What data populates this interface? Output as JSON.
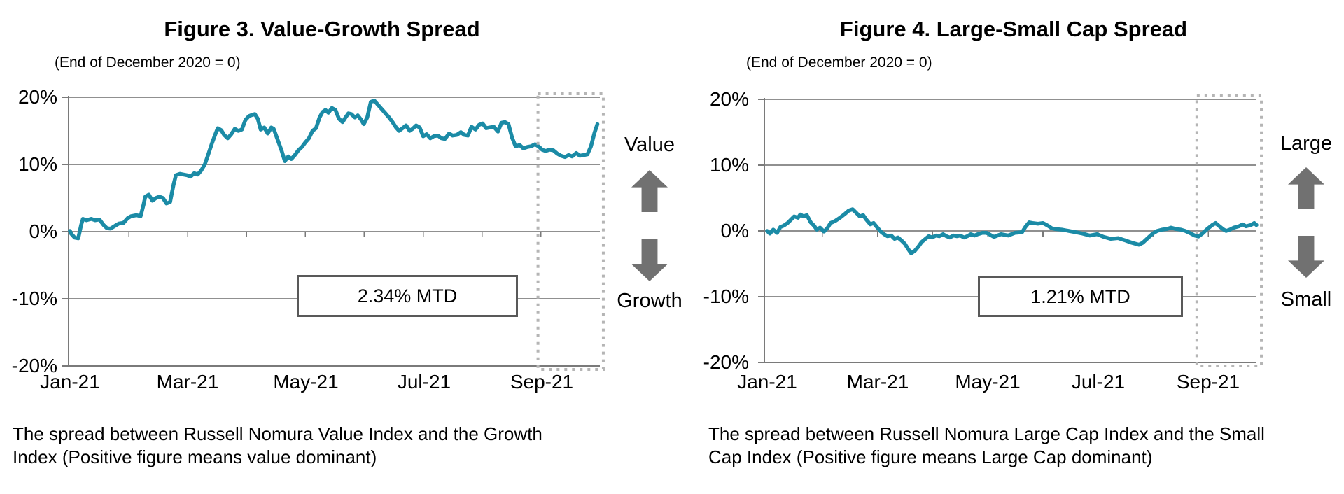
{
  "colors": {
    "series_teal": "#1b8ba6",
    "gridline_gray": "#909090",
    "axis_gray": "#7a7a7a",
    "highlight_dotted_gray": "#b5b5b5",
    "arrow_gray": "#717171",
    "mtd_border_gray": "#595959",
    "text_black": "#000000"
  },
  "charts": [
    {
      "title": "Figure 3. Value-Growth Spread",
      "subtitle": "(End of December 2020 = 0)",
      "mtd_box_label": "2.34% MTD",
      "upper_label": "Value",
      "lower_label": "Growth",
      "caption_lines": [
        "The spread between Russell Nomura Value Index and the Growth",
        "Index (Positive figure means value dominant)"
      ],
      "y_tick_labels": [
        "20%",
        "10%",
        "0%",
        "-10%",
        "-20%"
      ],
      "x_tick_labels": [
        "Jan-21",
        "Mar-21",
        "May-21",
        "Jul-21",
        "Sep-21"
      ],
      "chart_data": {
        "type": "line",
        "series_name": "Russell Nomura Value minus Growth spread (%)",
        "title": "Figure 3. Value-Growth Spread",
        "subtitle": "(End of December 2020 = 0)",
        "x_unit": "months since 2021-01-01",
        "xlim": [
          -0.02,
          9.0
        ],
        "ylim": [
          -20,
          20
        ],
        "yticks": [
          20,
          10,
          0,
          -10,
          -20
        ],
        "ytick_labels": [
          "20%",
          "10%",
          "0%",
          "-10%",
          "-20%"
        ],
        "xticks_months": [
          0,
          2,
          4,
          6,
          8
        ],
        "xtick_labels": [
          "Jan-21",
          "Mar-21",
          "May-21",
          "Jul-21",
          "Sep-21"
        ],
        "minor_xticks_months": [
          1,
          2,
          3,
          4,
          5,
          6,
          7,
          8
        ],
        "grid": true,
        "annotation": "2.34% MTD",
        "highlight_box_months": [
          7.95,
          9.06
        ],
        "line_color": "#1b8ba6",
        "x": [
          0,
          0.02,
          0.08,
          0.14,
          0.19,
          0.22,
          0.28,
          0.36,
          0.43,
          0.5,
          0.57,
          0.63,
          0.69,
          0.77,
          0.83,
          0.91,
          0.98,
          1.04,
          1.13,
          1.2,
          1.25,
          1.28,
          1.34,
          1.4,
          1.46,
          1.52,
          1.58,
          1.64,
          1.7,
          1.76,
          1.8,
          1.87,
          1.93,
          1.99,
          2.05,
          2.11,
          2.17,
          2.23,
          2.29,
          2.35,
          2.41,
          2.47,
          2.51,
          2.57,
          2.62,
          2.68,
          2.74,
          2.8,
          2.86,
          2.92,
          2.98,
          3.04,
          3.1,
          3.14,
          3.19,
          3.24,
          3.3,
          3.36,
          3.42,
          3.46,
          3.54,
          3.59,
          3.65,
          3.71,
          3.76,
          3.82,
          3.88,
          3.94,
          4.0,
          4.06,
          4.12,
          4.18,
          4.24,
          4.29,
          4.34,
          4.39,
          4.45,
          4.51,
          4.57,
          4.63,
          4.69,
          4.73,
          4.78,
          4.84,
          4.89,
          4.95,
          4.99,
          5.05,
          5.11,
          5.17,
          5.23,
          5.29,
          5.36,
          5.42,
          5.48,
          5.54,
          5.59,
          5.65,
          5.71,
          5.77,
          5.82,
          5.88,
          5.94,
          6.0,
          6.06,
          6.12,
          6.18,
          6.25,
          6.31,
          6.37,
          6.44,
          6.5,
          6.57,
          6.64,
          6.7,
          6.76,
          6.82,
          6.89,
          6.95,
          7.01,
          7.07,
          7.13,
          7.2,
          7.27,
          7.33,
          7.39,
          7.45,
          7.51,
          7.57,
          7.64,
          7.7,
          7.77,
          7.83,
          7.9,
          7.96,
          8.02,
          8.08,
          8.15,
          8.21,
          8.28,
          8.34,
          8.41,
          8.47,
          8.53,
          8.6,
          8.66,
          8.73,
          8.79,
          8.85,
          8.91,
          8.96
        ],
        "y": [
          0.1,
          -0.3,
          -0.9,
          -1.0,
          1.0,
          1.9,
          1.7,
          1.9,
          1.7,
          1.8,
          1.0,
          0.5,
          0.45,
          0.9,
          1.2,
          1.3,
          2.0,
          2.3,
          2.45,
          2.3,
          4.0,
          5.2,
          5.5,
          4.6,
          5.0,
          5.2,
          5.0,
          4.2,
          4.4,
          7.0,
          8.4,
          8.6,
          8.5,
          8.4,
          8.2,
          8.7,
          8.5,
          9.1,
          10.0,
          11.5,
          13.1,
          14.5,
          15.4,
          15.1,
          14.4,
          13.9,
          14.5,
          15.3,
          15.0,
          15.2,
          16.6,
          17.2,
          17.4,
          17.5,
          16.8,
          15.2,
          15.5,
          14.6,
          15.5,
          15.3,
          13.4,
          12.2,
          10.5,
          11.2,
          10.8,
          11.4,
          12.1,
          12.6,
          13.3,
          13.9,
          15.0,
          15.4,
          17.0,
          17.8,
          18.1,
          17.7,
          18.4,
          18.1,
          16.8,
          16.3,
          17.1,
          17.6,
          17.5,
          17.0,
          17.3,
          16.6,
          16.0,
          17.0,
          19.3,
          19.5,
          18.9,
          18.3,
          17.6,
          17.0,
          16.3,
          15.5,
          15.0,
          15.4,
          15.8,
          15.0,
          15.3,
          15.8,
          15.5,
          14.2,
          14.5,
          13.9,
          14.2,
          14.3,
          13.9,
          13.8,
          14.6,
          14.3,
          14.4,
          14.8,
          14.4,
          14.3,
          15.6,
          15.2,
          15.9,
          16.1,
          15.4,
          15.5,
          15.6,
          14.9,
          16.2,
          16.3,
          16.0,
          14.0,
          12.7,
          12.9,
          12.4,
          12.6,
          12.7,
          13.0,
          12.7,
          12.2,
          12.0,
          12.2,
          12.1,
          11.6,
          11.3,
          11.1,
          11.4,
          11.2,
          11.7,
          11.3,
          11.4,
          11.5,
          12.7,
          14.7,
          16.0
        ]
      }
    },
    {
      "title": "Figure 4. Large-Small Cap Spread",
      "subtitle": "(End of December 2020 = 0)",
      "mtd_box_label": "1.21% MTD",
      "upper_label": "Large",
      "lower_label": "Small",
      "caption_lines": [
        "The spread between Russell Nomura Large Cap Index and the Small",
        "Cap Index (Positive figure means Large Cap dominant)"
      ],
      "y_tick_labels": [
        "20%",
        "10%",
        "0%",
        "-10%",
        "-20%"
      ],
      "x_tick_labels": [
        "Jan-21",
        "Mar-21",
        "May-21",
        "Jul-21",
        "Sep-21"
      ],
      "chart_data": {
        "type": "line",
        "series_name": "Russell Nomura Large Cap minus Small Cap spread (%)",
        "title": "Figure 4. Large-Small Cap Spread",
        "subtitle": "(End of December 2020 = 0)",
        "x_unit": "months since 2021-01-01",
        "xlim": [
          -0.05,
          8.87
        ],
        "ylim": [
          -20,
          20
        ],
        "yticks": [
          20,
          10,
          0,
          -10,
          -20
        ],
        "ytick_labels": [
          "20%",
          "10%",
          "0%",
          "-10%",
          "-20%"
        ],
        "xticks_months": [
          0,
          2,
          4,
          6,
          8
        ],
        "xtick_labels": [
          "Jan-21",
          "Mar-21",
          "May-21",
          "Jul-21",
          "Sep-21"
        ],
        "minor_xticks_months": [
          1,
          2,
          3,
          4,
          5,
          6,
          7,
          8
        ],
        "grid": true,
        "annotation": "1.21% MTD",
        "highlight_box_months": [
          7.79,
          8.96
        ],
        "line_color": "#1b8ba6",
        "x": [
          0,
          0.05,
          0.11,
          0.18,
          0.24,
          0.3,
          0.37,
          0.43,
          0.49,
          0.56,
          0.6,
          0.66,
          0.72,
          0.79,
          0.85,
          0.9,
          0.96,
          1.03,
          1.09,
          1.15,
          1.23,
          1.32,
          1.41,
          1.48,
          1.55,
          1.61,
          1.68,
          1.74,
          1.8,
          1.87,
          1.93,
          1.99,
          2.06,
          2.12,
          2.18,
          2.25,
          2.31,
          2.37,
          2.44,
          2.5,
          2.56,
          2.61,
          2.68,
          2.74,
          2.8,
          2.87,
          2.93,
          2.99,
          3.06,
          3.12,
          3.19,
          3.25,
          3.31,
          3.38,
          3.44,
          3.5,
          3.57,
          3.63,
          3.69,
          3.76,
          3.82,
          3.9,
          3.98,
          4.11,
          4.24,
          4.37,
          4.49,
          4.62,
          4.68,
          4.75,
          4.81,
          4.91,
          5.0,
          5.09,
          5.16,
          5.22,
          5.34,
          5.47,
          5.6,
          5.72,
          5.85,
          5.98,
          6.1,
          6.23,
          6.36,
          6.48,
          6.61,
          6.74,
          6.81,
          6.9,
          6.99,
          7.07,
          7.16,
          7.25,
          7.32,
          7.41,
          7.5,
          7.58,
          7.66,
          7.75,
          7.82,
          7.89,
          7.98,
          8.07,
          8.13,
          8.2,
          8.26,
          8.32,
          8.39,
          8.46,
          8.55,
          8.62,
          8.68,
          8.77,
          8.83,
          8.87
        ],
        "y": [
          0.0,
          -0.4,
          0.2,
          -0.3,
          0.6,
          0.8,
          1.2,
          1.7,
          2.2,
          2.0,
          2.5,
          2.2,
          2.4,
          1.3,
          0.8,
          0.2,
          0.5,
          -0.1,
          0.4,
          1.2,
          1.5,
          2.0,
          2.6,
          3.1,
          3.3,
          2.8,
          2.2,
          2.4,
          1.7,
          1.0,
          1.2,
          0.6,
          -0.1,
          -0.5,
          -0.8,
          -0.7,
          -1.2,
          -1.0,
          -1.5,
          -2.0,
          -2.8,
          -3.4,
          -3.0,
          -2.4,
          -1.7,
          -1.2,
          -0.8,
          -1.0,
          -0.7,
          -0.8,
          -0.5,
          -0.8,
          -1.0,
          -0.7,
          -0.8,
          -0.7,
          -1.0,
          -0.8,
          -0.5,
          -0.7,
          -0.5,
          -0.3,
          -0.3,
          -0.9,
          -0.5,
          -0.7,
          -0.3,
          -0.2,
          0.6,
          1.3,
          1.2,
          1.1,
          1.2,
          0.8,
          0.4,
          0.3,
          0.2,
          0.0,
          -0.2,
          -0.4,
          -0.7,
          -0.5,
          -0.9,
          -1.2,
          -1.1,
          -1.4,
          -1.8,
          -2.1,
          -1.8,
          -1.1,
          -0.4,
          0.0,
          0.2,
          0.3,
          0.5,
          0.3,
          0.2,
          0.0,
          -0.3,
          -0.7,
          -0.85,
          -0.4,
          0.3,
          0.9,
          1.2,
          0.7,
          0.3,
          0.0,
          0.2,
          0.5,
          0.7,
          1.0,
          0.7,
          0.9,
          1.2,
          0.9
        ]
      }
    }
  ]
}
